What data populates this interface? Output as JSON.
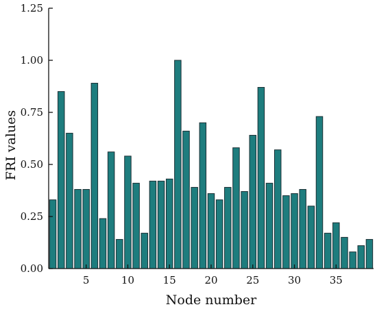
{
  "chart_data": {
    "type": "bar",
    "xlabel": "Node number",
    "ylabel": "FRI values",
    "ylim": [
      0,
      1.25
    ],
    "xlim": [
      0.5,
      39.5
    ],
    "yticks": [
      "0.00",
      "0.25",
      "0.50",
      "0.75",
      "1.00",
      "1.25"
    ],
    "yticks_values": [
      0,
      0.25,
      0.5,
      0.75,
      1.0,
      1.25
    ],
    "xticks": [
      "5",
      "10",
      "15",
      "20",
      "25",
      "30",
      "35"
    ],
    "xticks_values": [
      5,
      10,
      15,
      20,
      25,
      30,
      35
    ],
    "bar_color": "#1e7d7e",
    "grid": false,
    "categories": [
      1,
      2,
      3,
      4,
      5,
      6,
      7,
      8,
      9,
      10,
      11,
      12,
      13,
      14,
      15,
      16,
      17,
      18,
      19,
      20,
      21,
      22,
      23,
      24,
      25,
      26,
      27,
      28,
      29,
      30,
      31,
      32,
      33,
      34,
      35,
      36,
      37,
      38,
      39
    ],
    "values": [
      0.33,
      0.85,
      0.65,
      0.38,
      0.38,
      0.89,
      0.24,
      0.56,
      0.14,
      0.54,
      0.41,
      0.17,
      0.42,
      0.42,
      0.43,
      1.0,
      0.66,
      0.39,
      0.7,
      0.36,
      0.33,
      0.39,
      0.58,
      0.37,
      0.64,
      0.87,
      0.41,
      0.57,
      0.35,
      0.36,
      0.38,
      0.3,
      0.73,
      0.17,
      0.22,
      0.15,
      0.08,
      0.11,
      0.14
    ]
  }
}
